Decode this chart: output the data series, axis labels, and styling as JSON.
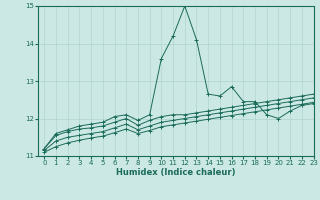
{
  "xlabel": "Humidex (Indice chaleur)",
  "xlim": [
    -0.5,
    23
  ],
  "ylim": [
    11,
    15
  ],
  "yticks": [
    11,
    12,
    13,
    14,
    15
  ],
  "xticks": [
    0,
    1,
    2,
    3,
    4,
    5,
    6,
    7,
    8,
    9,
    10,
    11,
    12,
    13,
    14,
    15,
    16,
    17,
    18,
    19,
    20,
    21,
    22,
    23
  ],
  "bg_color": "#cce8e4",
  "grid_color": "#b0d4cf",
  "line_color": "#1a6b5a",
  "lines": [
    [
      11.2,
      11.6,
      11.7,
      11.8,
      11.85,
      11.9,
      12.05,
      12.1,
      11.95,
      12.1,
      13.6,
      14.2,
      15.0,
      14.1,
      12.65,
      12.6,
      12.85,
      12.45,
      12.45,
      12.1,
      12.0,
      12.2,
      12.35,
      12.4
    ],
    [
      11.2,
      11.55,
      11.65,
      11.72,
      11.75,
      11.8,
      11.9,
      12.0,
      11.82,
      11.95,
      12.05,
      12.1,
      12.1,
      12.15,
      12.2,
      12.25,
      12.3,
      12.35,
      12.4,
      12.45,
      12.5,
      12.55,
      12.6,
      12.65
    ],
    [
      11.15,
      11.4,
      11.5,
      11.55,
      11.6,
      11.65,
      11.75,
      11.85,
      11.7,
      11.8,
      11.9,
      11.95,
      12.0,
      12.05,
      12.1,
      12.15,
      12.2,
      12.25,
      12.3,
      12.35,
      12.4,
      12.45,
      12.5,
      12.55
    ],
    [
      11.1,
      11.25,
      11.35,
      11.42,
      11.48,
      11.53,
      11.62,
      11.72,
      11.6,
      11.68,
      11.78,
      11.83,
      11.88,
      11.93,
      11.98,
      12.03,
      12.08,
      12.13,
      12.18,
      12.23,
      12.28,
      12.33,
      12.38,
      12.43
    ]
  ]
}
